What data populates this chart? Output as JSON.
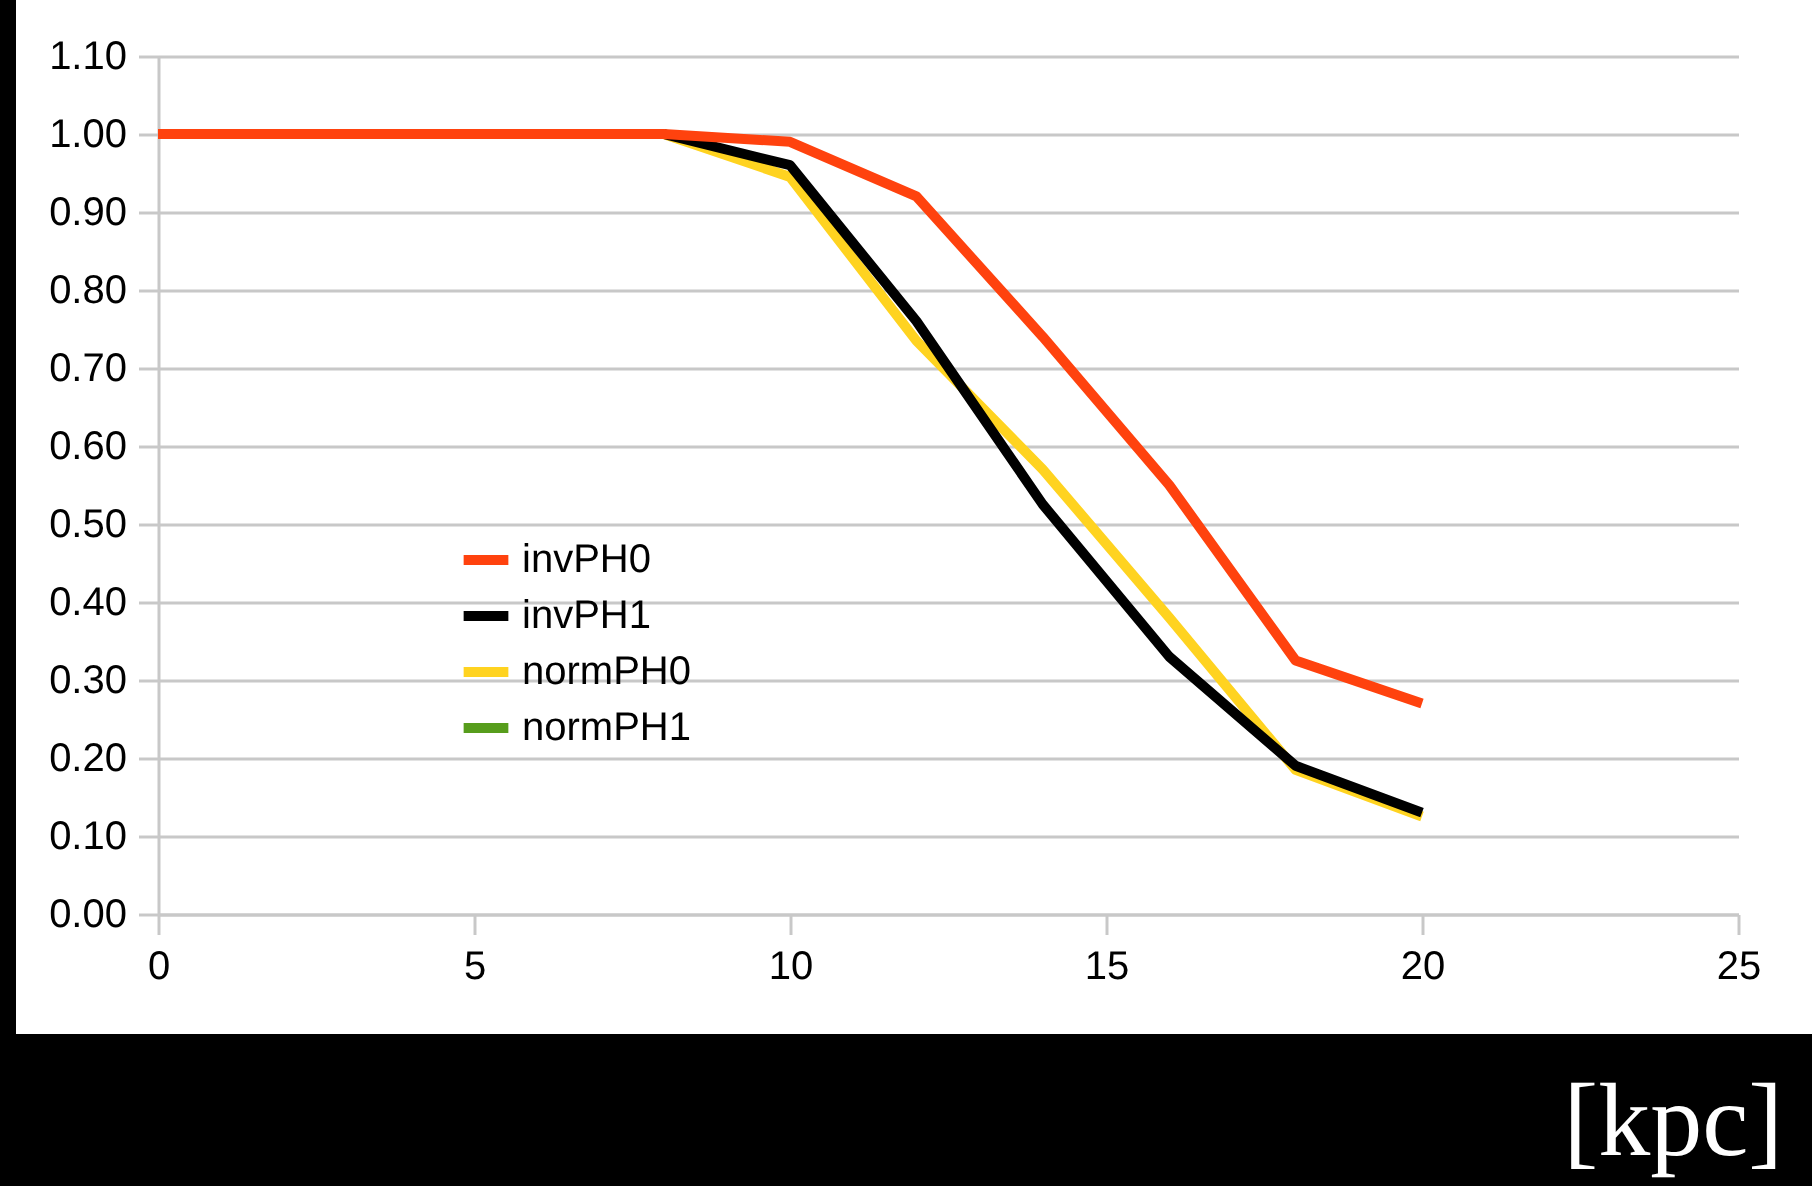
{
  "chart_data": {
    "type": "line",
    "xlabel": "[kpc]",
    "x": [
      0,
      2,
      4,
      6,
      8,
      10,
      12,
      14,
      16,
      18,
      20
    ],
    "series": [
      {
        "name": "invPH0",
        "color": "#ff420e",
        "values": [
          1.0,
          1.0,
          1.0,
          1.0,
          1.0,
          0.99,
          0.92,
          0.74,
          0.55,
          0.325,
          0.27
        ]
      },
      {
        "name": "invPH1",
        "color": "#000000",
        "values": [
          null,
          null,
          null,
          null,
          1.0,
          0.96,
          0.76,
          0.525,
          0.33,
          0.19,
          0.13
        ]
      },
      {
        "name": "normPH0",
        "color": "#ffd320",
        "values": [
          null,
          null,
          null,
          null,
          1.0,
          0.945,
          0.735,
          0.57,
          0.38,
          0.185,
          0.125
        ]
      },
      {
        "name": "normPH1",
        "color": "#579d1c",
        "values": [
          null,
          null,
          null,
          null,
          null,
          null,
          null,
          null,
          null,
          null,
          null
        ]
      }
    ],
    "xlim": [
      0,
      25
    ],
    "xticks": [
      0,
      5,
      10,
      15,
      20,
      25
    ],
    "ylim": [
      0,
      1.1
    ],
    "yticks": [
      {
        "value": 0,
        "label": "0.00"
      },
      {
        "value": 0.1,
        "label": "0.10"
      },
      {
        "value": 0.2,
        "label": "0.20"
      },
      {
        "value": 0.3,
        "label": "0.30"
      },
      {
        "value": 0.4,
        "label": "0.40"
      },
      {
        "value": 0.5,
        "label": "0.50"
      },
      {
        "value": 0.6,
        "label": "0.60"
      },
      {
        "value": 0.7,
        "label": "0.70"
      },
      {
        "value": 0.8,
        "label": "0.80"
      },
      {
        "value": 0.9,
        "label": "0.90"
      },
      {
        "value": 1.0,
        "label": "1.00"
      },
      {
        "value": 1.1,
        "label": "1.10"
      }
    ],
    "grid": "y",
    "legend": "left",
    "marker": "none",
    "line_style": "solid"
  }
}
